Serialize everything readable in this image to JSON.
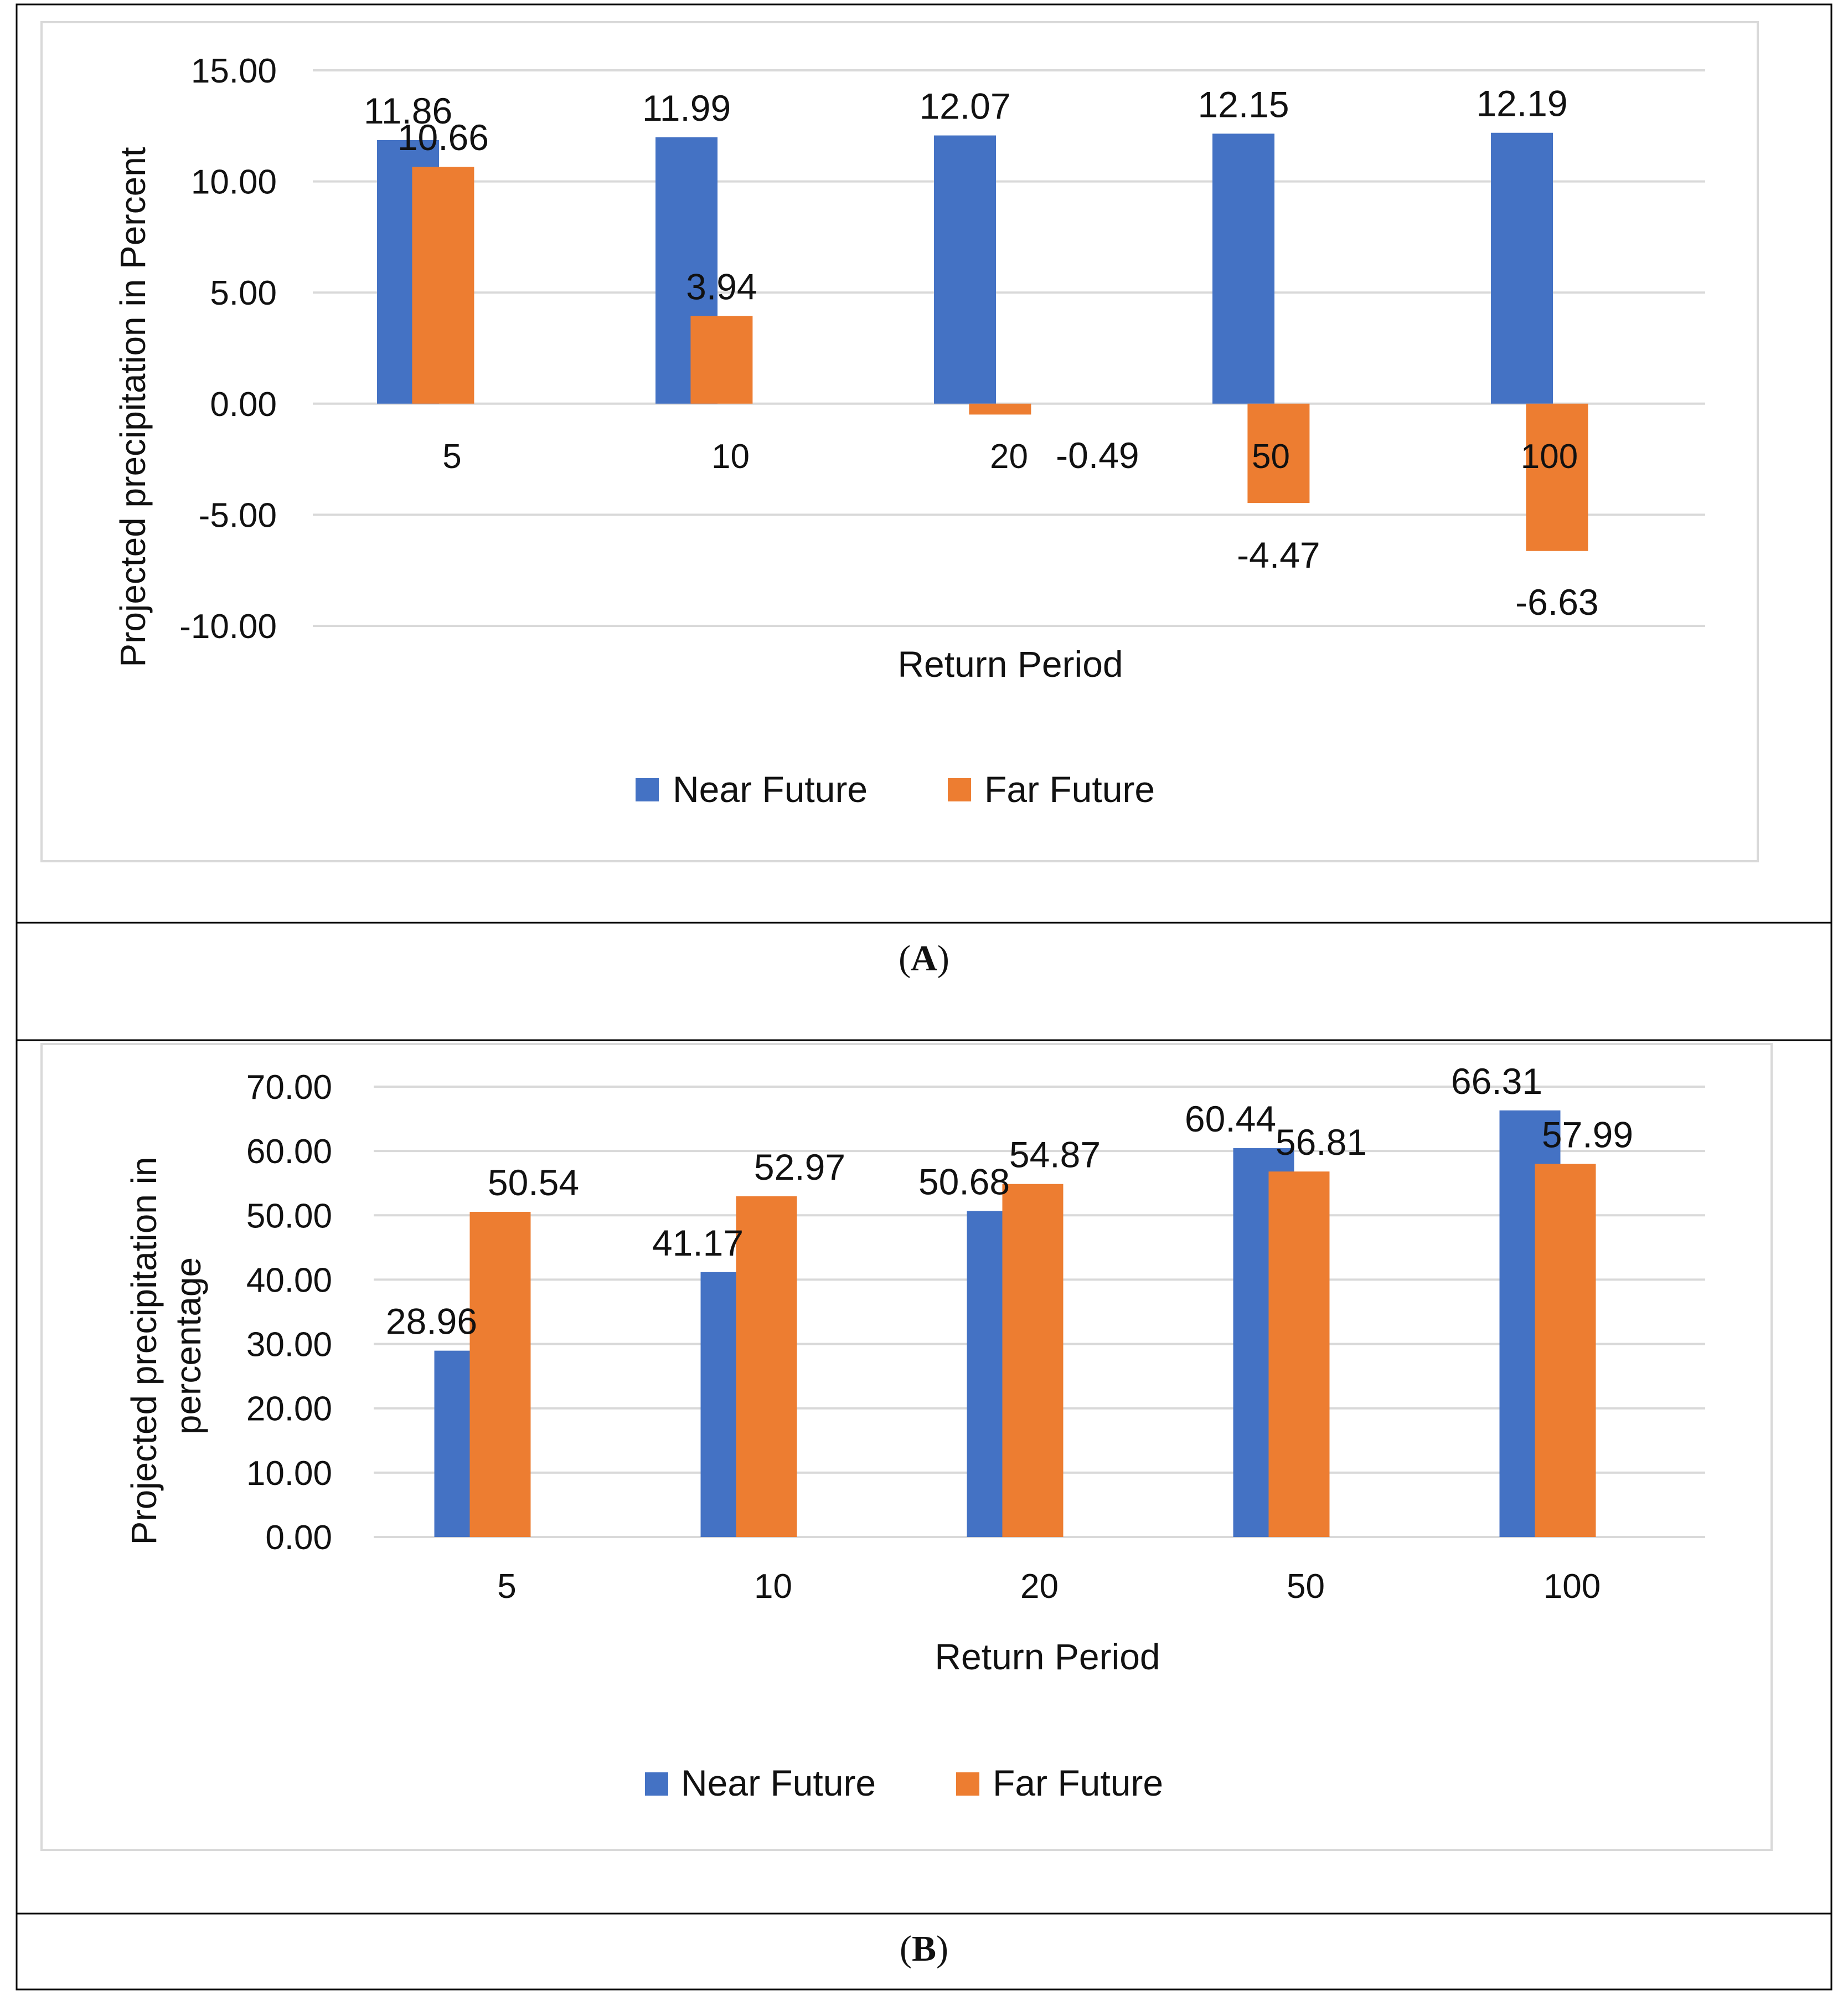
{
  "colors": {
    "near": "#4472c4",
    "far": "#ed7d31",
    "grid": "#d9d9d9",
    "text": "#111111",
    "frame": "#000000",
    "plotBorder": "#d9d9d9"
  },
  "panels": [
    {
      "caption_letter": "A",
      "caption_open": "(",
      "caption_close": ")"
    },
    {
      "caption_letter": "B",
      "caption_open": "(",
      "caption_close": ")"
    }
  ],
  "chart_data": [
    {
      "type": "bar",
      "categories": [
        "5",
        "10",
        "20",
        "50",
        "100"
      ],
      "series": [
        {
          "name": "Near Future",
          "values": [
            11.86,
            11.99,
            12.07,
            12.15,
            12.19
          ]
        },
        {
          "name": "Far Future",
          "values": [
            10.66,
            3.94,
            -0.49,
            -4.47,
            -6.63
          ]
        }
      ],
      "value_labels": {
        "Near Future": [
          "11.86",
          "11.99",
          "12.07",
          "12.15",
          "12.19"
        ],
        "Far Future": [
          "10.66",
          "3.94",
          "-0.49",
          "-4.47",
          "-6.63"
        ]
      },
      "xlabel": "Return Period",
      "ylabel": "Projected precipitation in Percent",
      "ylim": [
        -10,
        15
      ],
      "ytick_values": [
        -10,
        -5,
        0,
        5,
        10,
        15
      ],
      "ytick_labels": [
        "-10.00",
        "-5.00",
        "0.00",
        "5.00",
        "10.00",
        "15.00"
      ],
      "grid": true,
      "legend": "bottom-center"
    },
    {
      "type": "bar",
      "categories": [
        "5",
        "10",
        "20",
        "50",
        "100"
      ],
      "series": [
        {
          "name": "Near Future",
          "values": [
            28.96,
            41.17,
            50.68,
            60.44,
            66.31
          ]
        },
        {
          "name": "Far Future",
          "values": [
            50.54,
            52.97,
            54.87,
            56.81,
            57.99
          ]
        }
      ],
      "value_labels": {
        "Near Future": [
          "28.96",
          "41.17",
          "50.68",
          "60.44",
          "66.31"
        ],
        "Far Future": [
          "50.54",
          "52.97",
          "54.87",
          "56.81",
          "57.99"
        ]
      },
      "xlabel": "Return Period",
      "ylabel_lines": [
        "Projected precipitation in",
        "percentage"
      ],
      "ylim": [
        0,
        70
      ],
      "ytick_values": [
        0,
        10,
        20,
        30,
        40,
        50,
        60,
        70
      ],
      "ytick_labels": [
        "0.00",
        "10.00",
        "20.00",
        "30.00",
        "40.00",
        "50.00",
        "60.00",
        "70.00"
      ],
      "grid": true,
      "legend": "bottom-center"
    }
  ]
}
